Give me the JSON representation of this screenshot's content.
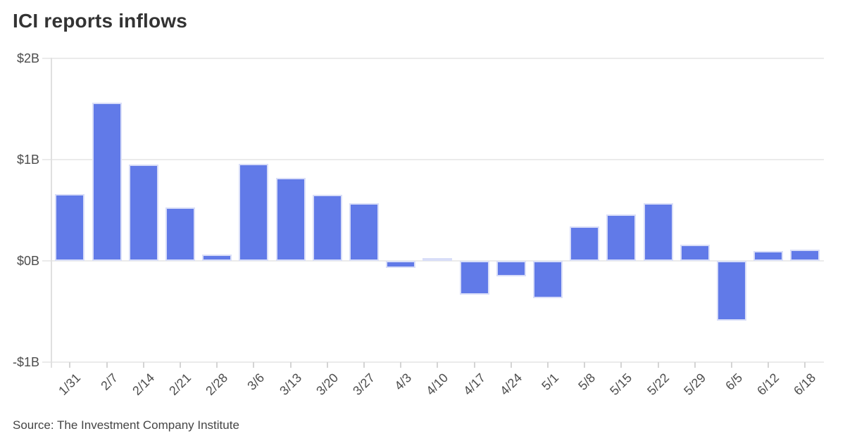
{
  "title": "ICI reports inflows",
  "source": "Source: The Investment Company Institute",
  "chart_data": {
    "type": "bar",
    "title": "ICI reports inflows",
    "categories": [
      "1/31",
      "2/7",
      "2/14",
      "2/21",
      "2/28",
      "3/6",
      "3/13",
      "3/20",
      "3/27",
      "4/3",
      "4/10",
      "4/17",
      "4/24",
      "5/1",
      "5/8",
      "5/15",
      "5/22",
      "5/29",
      "6/5",
      "6/12",
      "6/18"
    ],
    "values": [
      0.66,
      1.56,
      0.95,
      0.53,
      0.06,
      0.96,
      0.82,
      0.65,
      0.57,
      -0.07,
      0.03,
      -0.33,
      -0.15,
      -0.37,
      0.34,
      0.46,
      0.57,
      0.16,
      -0.59,
      0.1,
      0.11
    ],
    "unit": "billions USD",
    "xlabel": "",
    "ylabel": "",
    "ylim": [
      -1,
      2
    ],
    "yticks": [
      {
        "value": 2,
        "label": "$2B"
      },
      {
        "value": 1,
        "label": "$1B"
      },
      {
        "value": 0,
        "label": "$0B"
      },
      {
        "value": -1,
        "label": "-$1B"
      }
    ],
    "grid": true,
    "legend": "none",
    "colors": {
      "bar_fill": "#617ae8",
      "bar_stroke": "#d9def8",
      "gridline": "#ebebeb",
      "axis_line": "#e0e0e0",
      "tick_mark": "#d4d4d4",
      "tick_text": "#4d4d4d",
      "title_text": "#333333",
      "source_text": "#454545"
    },
    "source": "Source: The Investment Company Institute"
  }
}
